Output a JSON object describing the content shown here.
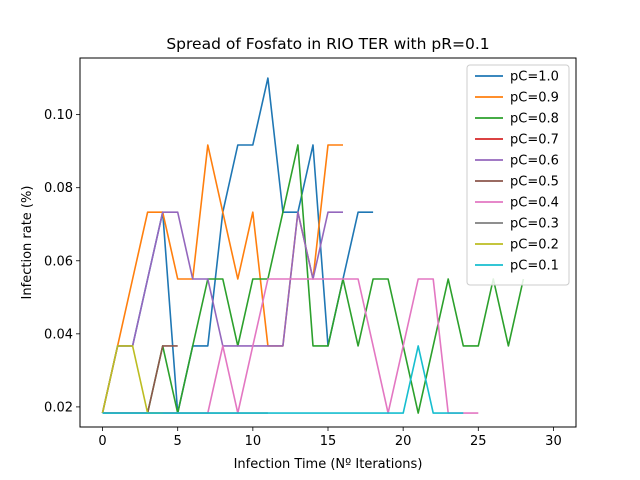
{
  "chart_data": {
    "type": "line",
    "title": "Spread of Fosfato in RIO TER with pR=0.1",
    "xlabel": "Infection Time (Nº Iterations)",
    "ylabel": "Infection rate (%)",
    "xlim": [
      -1.5,
      31.5
    ],
    "ylim": [
      0.0145,
      0.1155
    ],
    "xticks": [
      0,
      5,
      10,
      15,
      20,
      25,
      30
    ],
    "yticks": [
      0.02,
      0.04,
      0.06,
      0.08,
      0.1
    ],
    "ytick_labels": [
      "0.02",
      "0.04",
      "0.06",
      "0.08",
      "0.10"
    ],
    "legend_position": "top-right",
    "series": [
      {
        "name": "pC=1.0",
        "color": "#1f77b4",
        "x": [
          0,
          1,
          2,
          3,
          4,
          5,
          6,
          7,
          8,
          9,
          10,
          11,
          12,
          13,
          14,
          15,
          16,
          17,
          18
        ],
        "y": [
          0.0183,
          0.0367,
          0.0367,
          0.055,
          0.0733,
          0.0183,
          0.0367,
          0.0367,
          0.0733,
          0.0917,
          0.0917,
          0.11,
          0.0733,
          0.0733,
          0.0917,
          0.0367,
          0.055,
          0.0733,
          0.0733
        ]
      },
      {
        "name": "pC=0.9",
        "color": "#ff7f0e",
        "x": [
          0,
          1,
          2,
          3,
          4,
          5,
          6,
          7,
          8,
          9,
          10,
          11,
          12,
          13,
          14,
          15,
          16
        ],
        "y": [
          0.0183,
          0.0367,
          0.055,
          0.0733,
          0.0733,
          0.055,
          0.055,
          0.0917,
          0.0733,
          0.055,
          0.0733,
          0.0367,
          0.0367,
          0.0733,
          0.055,
          0.0917,
          0.0917
        ]
      },
      {
        "name": "pC=0.8",
        "color": "#2ca02c",
        "x": [
          0,
          1,
          2,
          3,
          4,
          5,
          6,
          7,
          8,
          9,
          10,
          11,
          12,
          13,
          14,
          15,
          16,
          17,
          18,
          19,
          20,
          21,
          22,
          23,
          24,
          25,
          26,
          27,
          28
        ],
        "y": [
          0.0183,
          0.0183,
          0.0183,
          0.0183,
          0.0367,
          0.0183,
          0.0367,
          0.055,
          0.055,
          0.0367,
          0.055,
          0.055,
          0.0733,
          0.0917,
          0.0367,
          0.0367,
          0.055,
          0.0367,
          0.055,
          0.055,
          0.0367,
          0.0183,
          0.0367,
          0.055,
          0.0367,
          0.0367,
          0.055,
          0.0367,
          0.055
        ]
      },
      {
        "name": "pC=0.7",
        "color": "#d62728",
        "x": [
          0,
          1,
          2,
          3,
          4,
          5
        ],
        "y": [
          0.0183,
          0.0183,
          0.0183,
          0.0183,
          0.0183,
          0.0183
        ]
      },
      {
        "name": "pC=0.6",
        "color": "#9467bd",
        "x": [
          0,
          1,
          2,
          3,
          4,
          5,
          6,
          7,
          8,
          9,
          10,
          11,
          12,
          13,
          14,
          15,
          16
        ],
        "y": [
          0.0183,
          0.0367,
          0.0367,
          0.055,
          0.0733,
          0.0733,
          0.055,
          0.055,
          0.0367,
          0.0367,
          0.0367,
          0.0367,
          0.0367,
          0.0733,
          0.055,
          0.0733,
          0.0733
        ]
      },
      {
        "name": "pC=0.5",
        "color": "#8c564b",
        "x": [
          0,
          1,
          2,
          3,
          4,
          5
        ],
        "y": [
          0.0183,
          0.0183,
          0.0183,
          0.0183,
          0.0367,
          0.0367
        ]
      },
      {
        "name": "pC=0.4",
        "color": "#e377c2",
        "x": [
          0,
          1,
          2,
          3,
          4,
          5,
          6,
          7,
          8,
          9,
          10,
          11,
          12,
          13,
          14,
          15,
          16,
          17,
          18,
          19,
          20,
          21,
          22,
          23,
          24,
          25
        ],
        "y": [
          0.0183,
          0.0183,
          0.0183,
          0.0183,
          0.0183,
          0.0183,
          0.0183,
          0.0183,
          0.0367,
          0.0183,
          0.0367,
          0.055,
          0.055,
          0.055,
          0.055,
          0.055,
          0.055,
          0.055,
          0.0367,
          0.0183,
          0.0367,
          0.055,
          0.055,
          0.0183,
          0.0183,
          0.0183
        ]
      },
      {
        "name": "pC=0.3",
        "color": "#7f7f7f",
        "x": [
          0,
          1,
          2,
          3,
          4,
          5,
          6,
          7,
          8,
          9,
          10,
          11
        ],
        "y": [
          0.0183,
          0.0183,
          0.0183,
          0.0183,
          0.0183,
          0.0183,
          0.0183,
          0.0183,
          0.0183,
          0.0183,
          0.0183,
          0.0183
        ]
      },
      {
        "name": "pC=0.2",
        "color": "#bcbd22",
        "x": [
          0,
          1,
          2,
          3,
          4
        ],
        "y": [
          0.0183,
          0.0367,
          0.0367,
          0.0183,
          0.0183
        ]
      },
      {
        "name": "pC=0.1",
        "color": "#17becf",
        "x": [
          0,
          1,
          2,
          3,
          4,
          5,
          6,
          7,
          8,
          9,
          10,
          11,
          12,
          13,
          14,
          15,
          16,
          17,
          18,
          19,
          20,
          21,
          22,
          23,
          24
        ],
        "y": [
          0.0183,
          0.0183,
          0.0183,
          0.0183,
          0.0183,
          0.0183,
          0.0183,
          0.0183,
          0.0183,
          0.0183,
          0.0183,
          0.0183,
          0.0183,
          0.0183,
          0.0183,
          0.0183,
          0.0183,
          0.0183,
          0.0183,
          0.0183,
          0.0183,
          0.0367,
          0.0183,
          0.0183,
          0.0183
        ]
      }
    ]
  }
}
